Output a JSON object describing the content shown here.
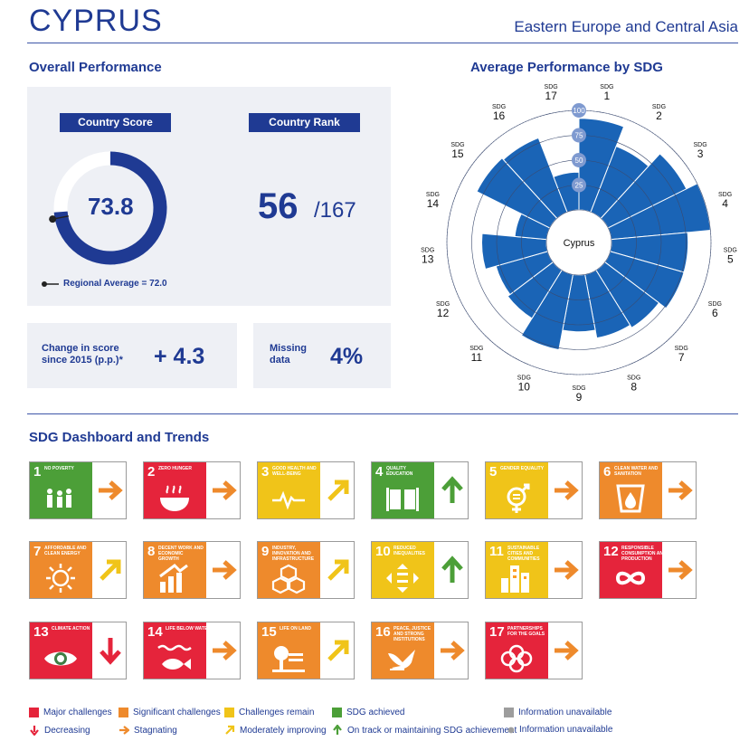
{
  "header": {
    "country": "CYPRUS",
    "region": "Eastern Europe and Central Asia"
  },
  "overall": {
    "heading": "Overall Performance",
    "score_label": "Country Score",
    "score": "73.8",
    "score_value": 73.8,
    "rank_label": "Country Rank",
    "rank": "56",
    "rank_of": "/167",
    "regional_avg_text": "Regional Average = 72.0",
    "regional_avg_value": 72.0,
    "change_label_1": "Change in score",
    "change_label_2": "since 2015 (p.p.)*",
    "change_value": "+ 4.3",
    "missing_label_1": "Missing",
    "missing_label_2": "data",
    "missing_value": "4%"
  },
  "radar": {
    "heading": "Average Performance by SDG",
    "center_label": "Cyprus",
    "sdg_prefix": "SDG",
    "ring_labels": [
      "25",
      "50",
      "75",
      "100"
    ]
  },
  "chart_data": {
    "type": "radial-bar",
    "title": "Average Performance by SDG",
    "rmax": 100,
    "ticks": [
      25,
      50,
      75,
      100
    ],
    "categories": [
      "1",
      "2",
      "3",
      "4",
      "5",
      "6",
      "7",
      "8",
      "9",
      "10",
      "11",
      "12",
      "13",
      "14",
      "15",
      "16",
      "17"
    ],
    "values": [
      92,
      71,
      88,
      100,
      77,
      77,
      68,
      65,
      57,
      77,
      57,
      54,
      65,
      32,
      82,
      80,
      38
    ],
    "color": "#1a64b6"
  },
  "dashboard": {
    "heading": "SDG Dashboard and Trends",
    "tiles": [
      {
        "num": "1",
        "name": "No Poverty",
        "color": "#e5243b",
        "status": "#4c9f38",
        "trend": "stagnating",
        "icon": "people-icon"
      },
      {
        "num": "2",
        "name": "Zero Hunger",
        "color": "#dda63a",
        "status": "#e5243b",
        "trend": "stagnating",
        "icon": "bowl-icon"
      },
      {
        "num": "3",
        "name": "Good Health and Well-Being",
        "color": "#4c9f38",
        "status": "#f0c419",
        "trend": "moderately-improving",
        "icon": "heartbeat-icon"
      },
      {
        "num": "4",
        "name": "Quality Education",
        "color": "#c5192d",
        "status": "#4c9f38",
        "trend": "on-track",
        "icon": "book-icon"
      },
      {
        "num": "5",
        "name": "Gender Equality",
        "color": "#ff3a21",
        "status": "#f0c419",
        "trend": "stagnating",
        "icon": "gender-icon"
      },
      {
        "num": "6",
        "name": "Clean Water and Sanitation",
        "color": "#26bde2",
        "status": "#ee8a2c",
        "trend": "stagnating",
        "icon": "water-icon"
      },
      {
        "num": "7",
        "name": "Affordable and Clean Energy",
        "color": "#fcc30b",
        "status": "#ee8a2c",
        "trend": "moderately-improving",
        "icon": "sun-icon"
      },
      {
        "num": "8",
        "name": "Decent Work and Economic Growth",
        "color": "#a21942",
        "status": "#ee8a2c",
        "trend": "stagnating",
        "icon": "growth-icon"
      },
      {
        "num": "9",
        "name": "Industry, Innovation and Infrastructure",
        "color": "#fd6925",
        "status": "#ee8a2c",
        "trend": "moderately-improving",
        "icon": "cubes-icon"
      },
      {
        "num": "10",
        "name": "Reduced Inequalities",
        "color": "#dd1367",
        "status": "#f0c419",
        "trend": "on-track",
        "icon": "equality-icon"
      },
      {
        "num": "11",
        "name": "Sustainable Cities and Communities",
        "color": "#fd9d24",
        "status": "#f0c419",
        "trend": "stagnating",
        "icon": "city-icon"
      },
      {
        "num": "12",
        "name": "Responsible Consumption and Production",
        "color": "#bf8b2e",
        "status": "#e5243b",
        "trend": "stagnating",
        "icon": "infinity-icon"
      },
      {
        "num": "13",
        "name": "Climate Action",
        "color": "#3f7e44",
        "status": "#e5243b",
        "trend": "decreasing",
        "icon": "eye-globe-icon"
      },
      {
        "num": "14",
        "name": "Life Below Water",
        "color": "#0a97d9",
        "status": "#e5243b",
        "trend": "stagnating",
        "icon": "fish-icon"
      },
      {
        "num": "15",
        "name": "Life on Land",
        "color": "#56c02b",
        "status": "#ee8a2c",
        "trend": "moderately-improving",
        "icon": "tree-icon"
      },
      {
        "num": "16",
        "name": "Peace, Justice and Strong Institutions",
        "color": "#00689d",
        "status": "#ee8a2c",
        "trend": "stagnating",
        "icon": "dove-icon"
      },
      {
        "num": "17",
        "name": "Partnerships for the Goals",
        "color": "#19486a",
        "status": "#e5243b",
        "trend": "stagnating",
        "icon": "rings-icon"
      }
    ]
  },
  "legend": {
    "major": "Major challenges",
    "significant": "Significant challenges",
    "remain": "Challenges remain",
    "achieved": "SDG achieved",
    "unavailable": "Information unavailable",
    "decreasing": "Decreasing",
    "stagnating": "Stagnating",
    "moderately": "Moderately improving",
    "ontrack": "On track or maintaining SDG achievement",
    "unavailable2": "Information unavailable",
    "colors": {
      "red": "#e5243b",
      "orange": "#ee8a2c",
      "yellow": "#f0c419",
      "green": "#4c9f38",
      "grey": "#9d9d9d"
    }
  }
}
